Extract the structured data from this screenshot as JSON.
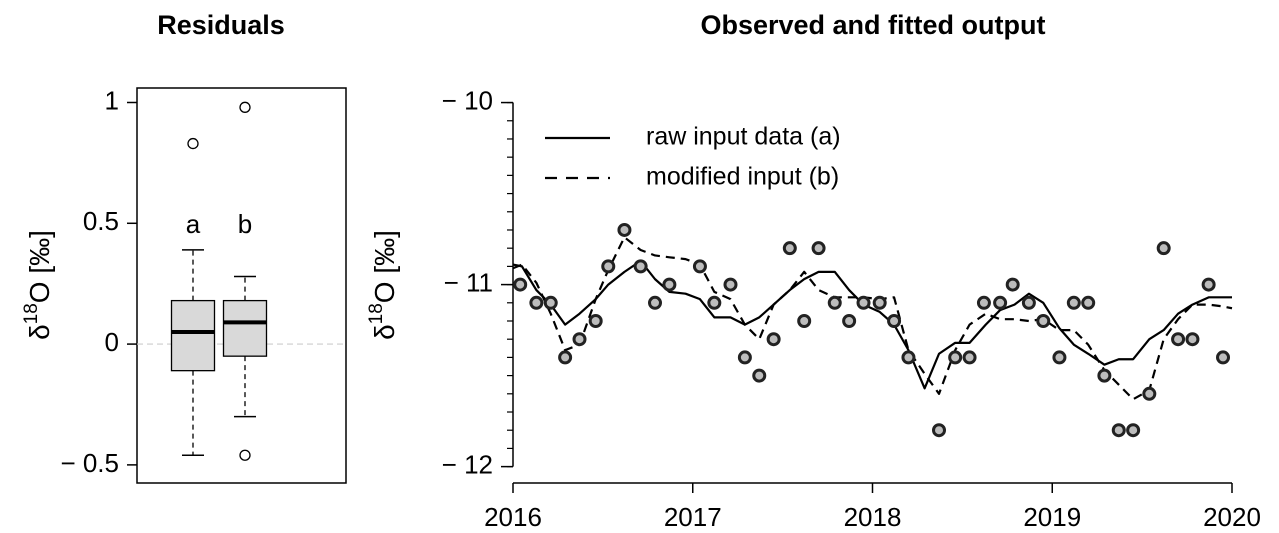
{
  "chart_data": [
    {
      "type": "box",
      "title": "Residuals",
      "ylabel": [
        "δ",
        "18",
        "O [‰]"
      ],
      "ylim": [
        -0.575,
        1.06
      ],
      "yticks": [
        {
          "value": -0.5,
          "label": "− 0.5"
        },
        0,
        0.5,
        1
      ],
      "zero_line": true,
      "color": "#d9d9d9",
      "boxes": [
        {
          "label": "a",
          "whisker_low": -0.46,
          "q1": -0.11,
          "median": 0.05,
          "q3": 0.18,
          "whisker_high": 0.39,
          "outliers": [
            0.83
          ]
        },
        {
          "label": "b",
          "whisker_low": -0.3,
          "q1": -0.05,
          "median": 0.09,
          "q3": 0.18,
          "whisker_high": 0.28,
          "outliers": [
            0.98,
            -0.46
          ]
        }
      ]
    },
    {
      "type": "line",
      "title": "Observed and fitted output",
      "ylabel": [
        "δ",
        "18",
        "O [‰]"
      ],
      "xlim": [
        2016,
        2020
      ],
      "xticks": [
        2016,
        2017,
        2018,
        2019,
        2020
      ],
      "ylim": [
        -12.09,
        -9.92
      ],
      "yticks": [
        {
          "value": -12,
          "label": "− 12"
        },
        {
          "value": -11,
          "label": "− 11"
        },
        {
          "value": -10,
          "label": "− 10"
        }
      ],
      "yminorticks": [
        -12,
        -11.9,
        -11.8,
        -11.7,
        -11.6,
        -11.5,
        -11.4,
        -11.3,
        -11.2,
        -11.1,
        -11,
        -10.9,
        -10.8,
        -10.7,
        -10.6,
        -10.5,
        -10.4,
        -10.3,
        -10.2,
        -10.1,
        -10
      ],
      "legend": "top-left",
      "series": [
        {
          "name": "raw input data (a)",
          "color": "#000000",
          "dash": "solid",
          "x": [
            2016.0,
            2016.05,
            2016.13,
            2016.21,
            2016.29,
            2016.37,
            2016.46,
            2016.53,
            2016.62,
            2016.71,
            2016.79,
            2016.87,
            2016.96,
            2017.04,
            2017.12,
            2017.21,
            2017.29,
            2017.37,
            2017.45,
            2017.54,
            2017.62,
            2017.7,
            2017.79,
            2017.87,
            2017.95,
            2018.04,
            2018.12,
            2018.2,
            2018.29,
            2018.37,
            2018.46,
            2018.54,
            2018.63,
            2018.71,
            2018.79,
            2018.87,
            2018.95,
            2019.04,
            2019.12,
            2019.2,
            2019.29,
            2019.37,
            2019.45,
            2019.54,
            2019.62,
            2019.7,
            2019.78,
            2019.87,
            2019.95,
            2020.0
          ],
          "values": [
            -10.89,
            -10.9,
            -11.03,
            -11.11,
            -11.22,
            -11.16,
            -11.08,
            -11.0,
            -10.93,
            -10.87,
            -10.97,
            -11.04,
            -11.05,
            -11.08,
            -11.18,
            -11.18,
            -11.22,
            -11.18,
            -11.11,
            -11.03,
            -10.97,
            -10.93,
            -10.93,
            -11.03,
            -11.11,
            -11.15,
            -11.22,
            -11.36,
            -11.57,
            -11.38,
            -11.32,
            -11.32,
            -11.22,
            -11.14,
            -11.11,
            -11.05,
            -11.1,
            -11.24,
            -11.33,
            -11.38,
            -11.44,
            -11.41,
            -11.41,
            -11.3,
            -11.25,
            -11.16,
            -11.11,
            -11.07,
            -11.07,
            -11.07
          ]
        },
        {
          "name": "modified input (b)",
          "color": "#000000",
          "dash": "dashed",
          "x": [
            2016.0,
            2016.05,
            2016.13,
            2016.21,
            2016.29,
            2016.37,
            2016.46,
            2016.53,
            2016.62,
            2016.71,
            2016.79,
            2016.87,
            2016.96,
            2017.04,
            2017.12,
            2017.21,
            2017.29,
            2017.37,
            2017.45,
            2017.54,
            2017.62,
            2017.7,
            2017.79,
            2017.87,
            2017.95,
            2018.04,
            2018.12,
            2018.2,
            2018.29,
            2018.37,
            2018.46,
            2018.54,
            2018.63,
            2018.71,
            2018.79,
            2018.87,
            2018.95,
            2019.04,
            2019.12,
            2019.2,
            2019.29,
            2019.37,
            2019.45,
            2019.54,
            2019.62,
            2019.7,
            2019.78,
            2019.87,
            2019.95,
            2020.0
          ],
          "values": [
            -10.91,
            -10.89,
            -10.99,
            -11.16,
            -11.36,
            -11.33,
            -11.08,
            -10.92,
            -10.74,
            -10.81,
            -10.84,
            -10.85,
            -10.86,
            -10.89,
            -11.04,
            -11.08,
            -11.22,
            -11.3,
            -11.11,
            -11.03,
            -10.93,
            -11.03,
            -11.07,
            -11.07,
            -11.07,
            -11.08,
            -11.07,
            -11.36,
            -11.49,
            -11.6,
            -11.36,
            -11.22,
            -11.16,
            -11.19,
            -11.19,
            -11.2,
            -11.19,
            -11.25,
            -11.25,
            -11.33,
            -11.47,
            -11.55,
            -11.63,
            -11.58,
            -11.3,
            -11.19,
            -11.11,
            -11.11,
            -11.12,
            -11.13
          ]
        }
      ],
      "points": {
        "color": "#bdbdbd",
        "x": [
          2016.04,
          2016.13,
          2016.21,
          2016.29,
          2016.37,
          2016.46,
          2016.53,
          2016.62,
          2016.71,
          2016.79,
          2016.87,
          2017.04,
          2017.12,
          2017.21,
          2017.29,
          2017.37,
          2017.45,
          2017.54,
          2017.62,
          2017.7,
          2017.79,
          2017.87,
          2017.95,
          2018.04,
          2018.12,
          2018.2,
          2018.37,
          2018.46,
          2018.54,
          2018.62,
          2018.71,
          2018.78,
          2018.87,
          2018.95,
          2019.04,
          2019.12,
          2019.2,
          2019.29,
          2019.37,
          2019.45,
          2019.54,
          2019.62,
          2019.7,
          2019.78,
          2019.87,
          2019.95
        ],
        "values": [
          -11.0,
          -11.1,
          -11.1,
          -11.4,
          -11.3,
          -11.2,
          -10.9,
          -10.7,
          -10.9,
          -11.1,
          -11.0,
          -10.9,
          -11.1,
          -11.0,
          -11.4,
          -11.5,
          -11.3,
          -10.8,
          -11.2,
          -10.8,
          -11.1,
          -11.2,
          -11.1,
          -11.1,
          -11.2,
          -11.4,
          -11.8,
          -11.4,
          -11.4,
          -11.1,
          -11.1,
          -11.0,
          -11.1,
          -11.2,
          -11.4,
          -11.1,
          -11.1,
          -11.5,
          -11.8,
          -11.8,
          -11.6,
          -10.8,
          -11.3,
          -11.3,
          -11.0,
          -11.4
        ]
      }
    }
  ]
}
